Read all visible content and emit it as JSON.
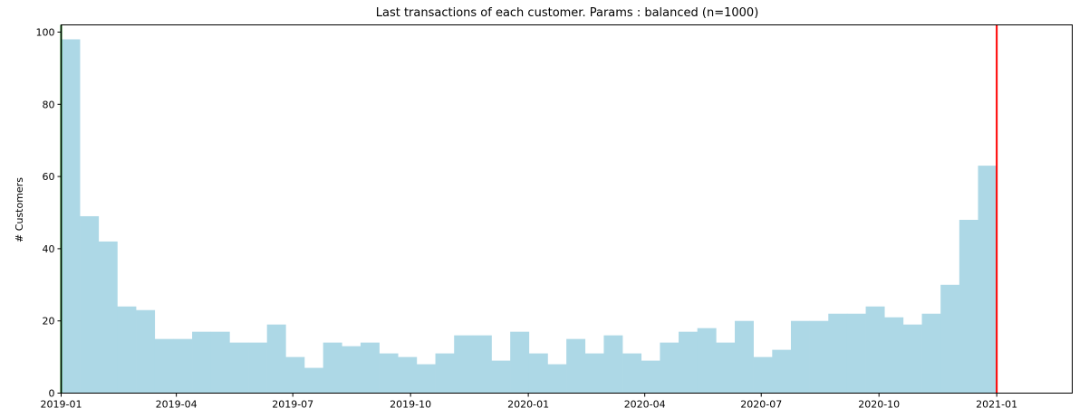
{
  "chart_data": {
    "type": "bar",
    "title": "Last transactions of each customer. Params : balanced (n=1000)",
    "xlabel": "",
    "ylabel": "# Customers",
    "xlim": [
      "2019-01-01",
      "2021-03-01"
    ],
    "ylim": [
      0,
      102
    ],
    "grid": false,
    "bar_color": "#add8e6",
    "vline_start": {
      "x": "2019-01-01",
      "color": "#006400"
    },
    "vline_end": {
      "x": "2021-01-01",
      "color": "#ff0000"
    },
    "bins": {
      "start": "2019-01-01",
      "end": "2021-01-01",
      "count": 50
    },
    "values": [
      98,
      49,
      42,
      24,
      23,
      15,
      15,
      17,
      17,
      14,
      14,
      19,
      10,
      7,
      14,
      13,
      14,
      11,
      10,
      8,
      11,
      16,
      16,
      9,
      17,
      11,
      8,
      15,
      11,
      16,
      11,
      9,
      14,
      17,
      18,
      14,
      20,
      10,
      12,
      20,
      20,
      22,
      22,
      24,
      21,
      19,
      22,
      30,
      48,
      63
    ],
    "x_ticks": [
      "2019-01",
      "2019-04",
      "2019-07",
      "2019-10",
      "2020-01",
      "2020-04",
      "2020-07",
      "2020-10",
      "2021-01"
    ],
    "y_ticks": [
      0,
      20,
      40,
      60,
      80,
      100
    ]
  }
}
